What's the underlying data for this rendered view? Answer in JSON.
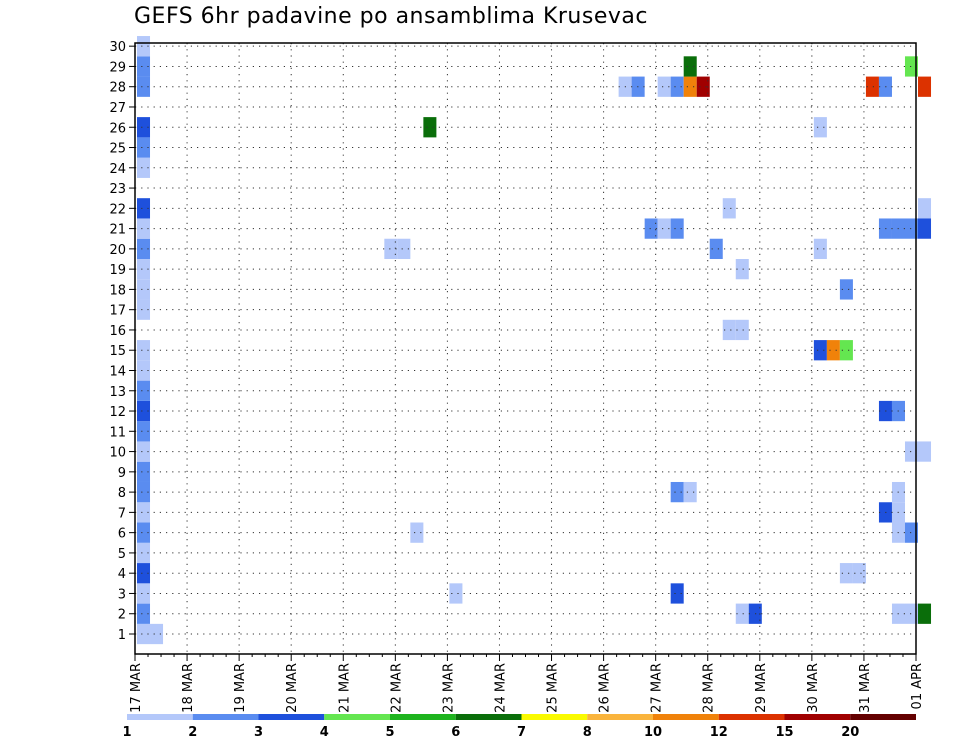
{
  "chart_data": {
    "type": "heatmap",
    "title": "GEFS 6hr padavine po ansamblima Krusevac",
    "xlabel": "",
    "ylabel": "",
    "y_members": [
      1,
      2,
      3,
      4,
      5,
      6,
      7,
      8,
      9,
      10,
      11,
      12,
      13,
      14,
      15,
      16,
      17,
      18,
      19,
      20,
      21,
      22,
      23,
      24,
      25,
      26,
      27,
      28,
      29,
      30
    ],
    "x_tick_labels": [
      "17 MAR",
      "18 MAR",
      "19 MAR",
      "20 MAR",
      "21 MAR",
      "22 MAR",
      "23 MAR",
      "24 MAR",
      "25 MAR",
      "26 MAR",
      "27 MAR",
      "28 MAR",
      "29 MAR",
      "30 MAR",
      "31 MAR",
      "01 APR"
    ],
    "steps_per_day": 4,
    "grid": true,
    "colorbar": {
      "tick_labels": [
        "1",
        "2",
        "3",
        "4",
        "5",
        "6",
        "7",
        "8",
        "10",
        "12",
        "15",
        "20"
      ],
      "colors": [
        "#b4c8fa",
        "#5a8cf0",
        "#1e50dc",
        "#64e650",
        "#1eb41e",
        "#0a6e0a",
        "#fafa00",
        "#fab43c",
        "#f0820a",
        "#dc3200",
        "#a00000",
        "#640000"
      ]
    },
    "cells": [
      {
        "m": 1,
        "t": 0,
        "c": 1
      },
      {
        "m": 1,
        "t": 1,
        "c": 1
      },
      {
        "m": 2,
        "t": 0,
        "c": 2
      },
      {
        "m": 3,
        "t": 0,
        "c": 1
      },
      {
        "m": 4,
        "t": 0,
        "c": 3
      },
      {
        "m": 5,
        "t": 0,
        "c": 1
      },
      {
        "m": 6,
        "t": 0,
        "c": 2
      },
      {
        "m": 7,
        "t": 0,
        "c": 1
      },
      {
        "m": 8,
        "t": 0,
        "c": 2
      },
      {
        "m": 9,
        "t": 0,
        "c": 2
      },
      {
        "m": 10,
        "t": 0,
        "c": 1
      },
      {
        "m": 11,
        "t": 0,
        "c": 2
      },
      {
        "m": 12,
        "t": 0,
        "c": 3
      },
      {
        "m": 13,
        "t": 0,
        "c": 2
      },
      {
        "m": 14,
        "t": 0,
        "c": 1
      },
      {
        "m": 15,
        "t": 0,
        "c": 1
      },
      {
        "m": 17,
        "t": 0,
        "c": 1
      },
      {
        "m": 18,
        "t": 0,
        "c": 1
      },
      {
        "m": 19,
        "t": 0,
        "c": 1
      },
      {
        "m": 20,
        "t": 0,
        "c": 2
      },
      {
        "m": 21,
        "t": 0,
        "c": 1
      },
      {
        "m": 22,
        "t": 0,
        "c": 3
      },
      {
        "m": 24,
        "t": 0,
        "c": 1
      },
      {
        "m": 25,
        "t": 0,
        "c": 2
      },
      {
        "m": 26,
        "t": 0,
        "c": 3
      },
      {
        "m": 28,
        "t": 0,
        "c": 2
      },
      {
        "m": 29,
        "t": 0,
        "c": 2
      },
      {
        "m": 30,
        "t": 0,
        "c": 1
      },
      {
        "m": 26,
        "t": 22,
        "c": 6
      },
      {
        "m": 20,
        "t": 19,
        "c": 1
      },
      {
        "m": 20,
        "t": 20,
        "c": 1
      },
      {
        "m": 6,
        "t": 21,
        "c": 1
      },
      {
        "m": 3,
        "t": 24,
        "c": 1
      },
      {
        "m": 28,
        "t": 37,
        "c": 1
      },
      {
        "m": 28,
        "t": 38,
        "c": 2
      },
      {
        "m": 28,
        "t": 40,
        "c": 1
      },
      {
        "m": 28,
        "t": 41,
        "c": 2
      },
      {
        "m": 28,
        "t": 42,
        "c": 9
      },
      {
        "m": 28,
        "t": 43,
        "c": 11
      },
      {
        "m": 29,
        "t": 42,
        "c": 6
      },
      {
        "m": 21,
        "t": 39,
        "c": 2
      },
      {
        "m": 21,
        "t": 40,
        "c": 1
      },
      {
        "m": 21,
        "t": 41,
        "c": 2
      },
      {
        "m": 8,
        "t": 41,
        "c": 2
      },
      {
        "m": 8,
        "t": 42,
        "c": 1
      },
      {
        "m": 3,
        "t": 41,
        "c": 3
      },
      {
        "m": 22,
        "t": 45,
        "c": 1
      },
      {
        "m": 20,
        "t": 44,
        "c": 2
      },
      {
        "m": 19,
        "t": 46,
        "c": 1
      },
      {
        "m": 16,
        "t": 45,
        "c": 1
      },
      {
        "m": 16,
        "t": 46,
        "c": 1
      },
      {
        "m": 2,
        "t": 46,
        "c": 1
      },
      {
        "m": 2,
        "t": 47,
        "c": 3
      },
      {
        "m": 26,
        "t": 52,
        "c": 1
      },
      {
        "m": 20,
        "t": 52,
        "c": 1
      },
      {
        "m": 15,
        "t": 52,
        "c": 3
      },
      {
        "m": 15,
        "t": 53,
        "c": 9
      },
      {
        "m": 15,
        "t": 54,
        "c": 4
      },
      {
        "m": 18,
        "t": 54,
        "c": 2
      },
      {
        "m": 4,
        "t": 54,
        "c": 1
      },
      {
        "m": 4,
        "t": 55,
        "c": 1
      },
      {
        "m": 28,
        "t": 56,
        "c": 10
      },
      {
        "m": 28,
        "t": 57,
        "c": 2
      },
      {
        "m": 28,
        "t": 60,
        "c": 10
      },
      {
        "m": 29,
        "t": 59,
        "c": 4
      },
      {
        "m": 22,
        "t": 60,
        "c": 1
      },
      {
        "m": 21,
        "t": 57,
        "c": 2
      },
      {
        "m": 21,
        "t": 58,
        "c": 2
      },
      {
        "m": 21,
        "t": 59,
        "c": 2
      },
      {
        "m": 21,
        "t": 60,
        "c": 3
      },
      {
        "m": 12,
        "t": 57,
        "c": 3
      },
      {
        "m": 12,
        "t": 58,
        "c": 2
      },
      {
        "m": 10,
        "t": 59,
        "c": 1
      },
      {
        "m": 10,
        "t": 60,
        "c": 1
      },
      {
        "m": 8,
        "t": 58,
        "c": 1
      },
      {
        "m": 7,
        "t": 57,
        "c": 3
      },
      {
        "m": 7,
        "t": 58,
        "c": 1
      },
      {
        "m": 6,
        "t": 58,
        "c": 1
      },
      {
        "m": 6,
        "t": 59,
        "c": 2
      },
      {
        "m": 2,
        "t": 58,
        "c": 1
      },
      {
        "m": 2,
        "t": 59,
        "c": 1
      },
      {
        "m": 2,
        "t": 60,
        "c": 6
      }
    ]
  }
}
